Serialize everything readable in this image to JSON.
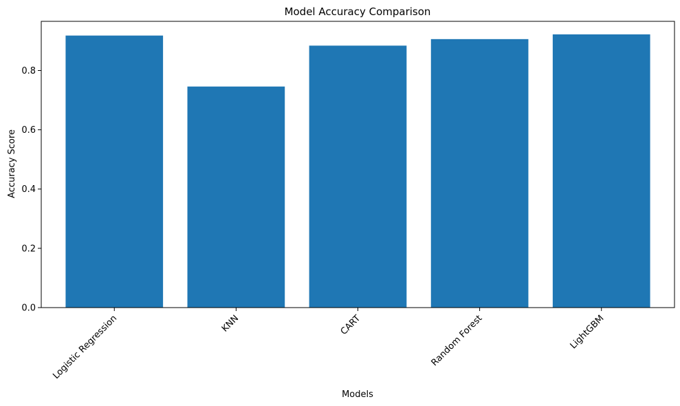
{
  "chart_data": {
    "type": "bar",
    "title": "Model Accuracy Comparison",
    "xlabel": "Models",
    "ylabel": "Accuracy Score",
    "categories": [
      "Logistic Regression",
      "KNN",
      "CART",
      "Random Forest",
      "LightGBM"
    ],
    "values": [
      0.918,
      0.746,
      0.884,
      0.906,
      0.922
    ],
    "ylim": [
      0,
      0.966
    ],
    "yticks": [
      "0.0",
      "0.2",
      "0.4",
      "0.6",
      "0.8"
    ],
    "grid": false,
    "legend": "none",
    "bar_color": "#1f77b4",
    "x_tick_rotation": "45 degrees"
  }
}
